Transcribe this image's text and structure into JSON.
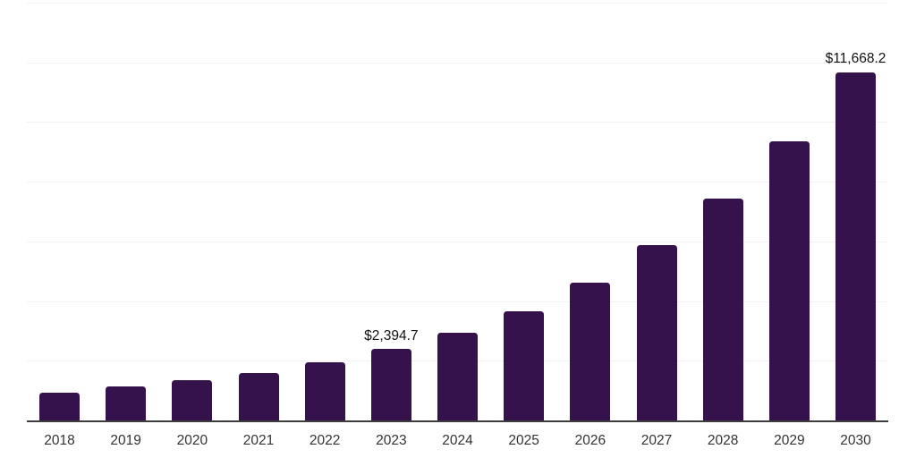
{
  "chart_data": {
    "type": "bar",
    "title": "",
    "xlabel": "",
    "ylabel": "",
    "categories": [
      "2018",
      "2019",
      "2020",
      "2021",
      "2022",
      "2023",
      "2024",
      "2025",
      "2026",
      "2027",
      "2028",
      "2029",
      "2030"
    ],
    "values": [
      930,
      1140,
      1350,
      1590,
      1950,
      2394.7,
      2950,
      3660,
      4620,
      5890,
      7450,
      9340,
      11668.2
    ],
    "data_labels": [
      null,
      null,
      null,
      null,
      null,
      "$2,394.7",
      null,
      null,
      null,
      null,
      null,
      null,
      "$11,668.2"
    ],
    "ylim": [
      0,
      14000
    ],
    "gridline_step": 2000,
    "grid": "horizontal-only",
    "y_tick_labels_visible": false,
    "legend_position": "none",
    "bar_color": "#35124B",
    "axis_color": "#3d3d3d",
    "gridline_color": "#f1f1f1",
    "data_label_color": "#111111",
    "tick_label_color": "#333333"
  }
}
